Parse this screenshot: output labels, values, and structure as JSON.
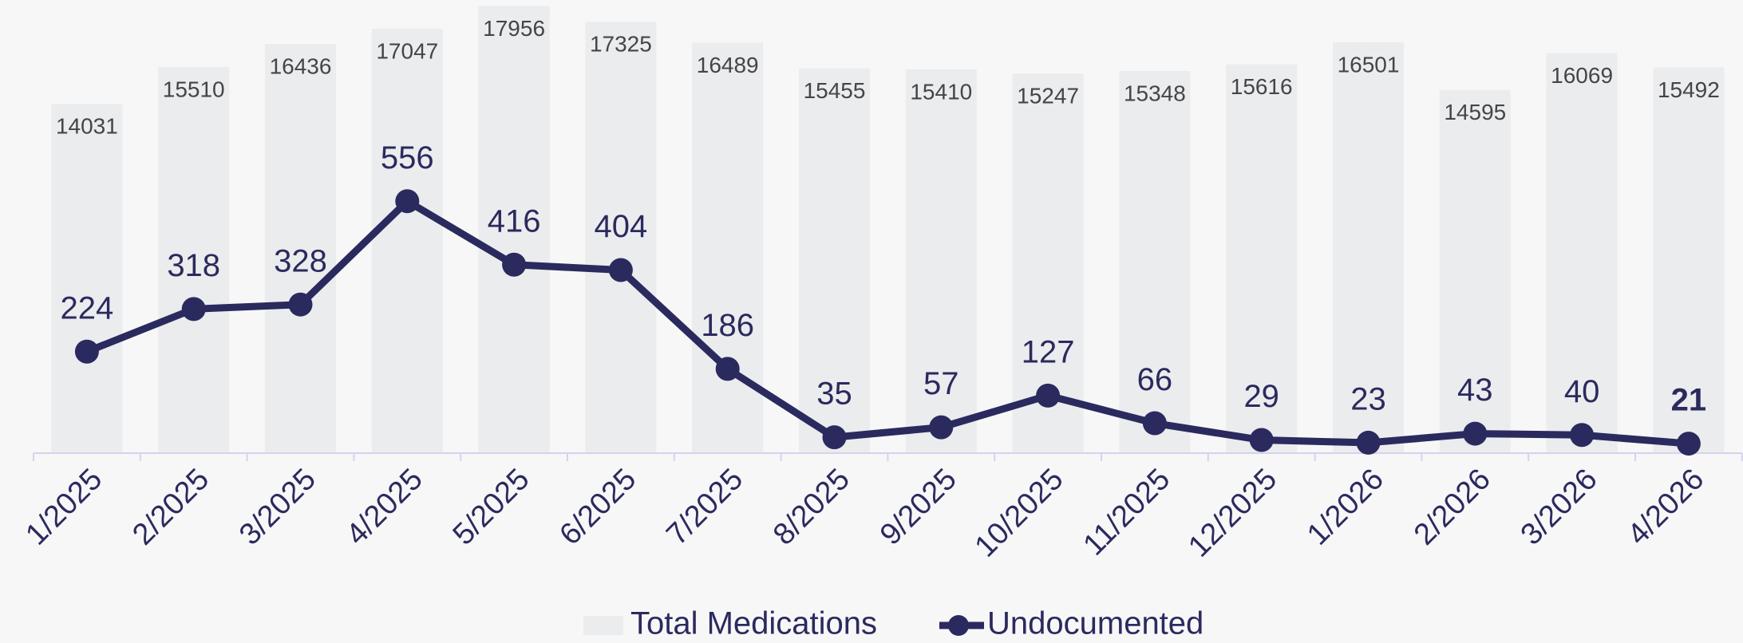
{
  "chart_data": {
    "type": "bar_line",
    "categories": [
      "1/2025",
      "2/2025",
      "3/2025",
      "4/2025",
      "5/2025",
      "6/2025",
      "7/2025",
      "8/2025",
      "9/2025",
      "10/2025",
      "11/2025",
      "12/2025",
      "1/2026",
      "2/2026",
      "3/2026",
      "4/2026"
    ],
    "series": [
      {
        "name": "Total Medications",
        "type": "bar",
        "color": "#ebecee",
        "values": [
          14031,
          15510,
          16436,
          17047,
          17956,
          17325,
          16489,
          15455,
          15410,
          15247,
          15348,
          15616,
          16501,
          14595,
          16069,
          15492
        ]
      },
      {
        "name": "Undocumented",
        "type": "line",
        "axis": "y2",
        "color": "#2b2a5e",
        "values": [
          224,
          318,
          328,
          556,
          416,
          404,
          186,
          35,
          57,
          127,
          66,
          29,
          23,
          43,
          40,
          21
        ]
      }
    ],
    "ylim": [
      0,
      18200
    ],
    "y2lim": [
      0,
      1000
    ],
    "legend": "bottom"
  }
}
